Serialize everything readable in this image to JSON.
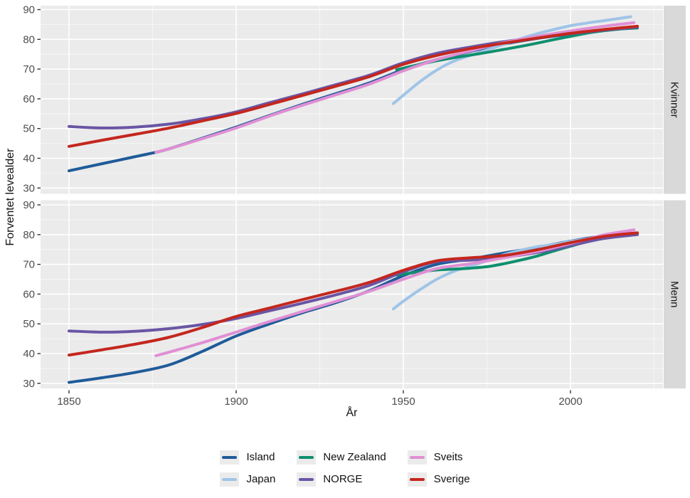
{
  "figure": {
    "y_axis_label": "Forventet levealder",
    "x_axis_label": "År"
  },
  "chart_data": {
    "type": "line",
    "title": "",
    "xlabel": "År",
    "ylabel": "Forventet levealder",
    "x_ticks": [
      1850,
      1900,
      1950,
      2000
    ],
    "x_minor": [
      1875,
      1925,
      1975,
      2025
    ],
    "y_ticks": [
      30,
      40,
      50,
      60,
      70,
      80,
      90
    ],
    "y_minor": [
      35,
      45,
      55,
      65,
      75,
      85
    ],
    "xlim": [
      1841,
      2028
    ],
    "ylim": [
      29,
      91
    ],
    "grid": true,
    "legend_position": "bottom",
    "facet_variable_values": [
      "Kvinner",
      "Menn"
    ],
    "legend": [
      {
        "label": "Island",
        "color": "#1f5b99"
      },
      {
        "label": "Japan",
        "color": "#9fc4e7"
      },
      {
        "label": "New Zealand",
        "color": "#0e8f6e"
      },
      {
        "label": "NORGE",
        "color": "#6a55a4"
      },
      {
        "label": "Sveits",
        "color": "#e08fd4"
      },
      {
        "label": "Sverige",
        "color": "#c4271e"
      }
    ],
    "facets": [
      {
        "label": "Kvinner",
        "series": [
          {
            "name": "Island",
            "color": "#1f5b99",
            "points": [
              [
                1850,
                35.8
              ],
              [
                1860,
                38.2
              ],
              [
                1870,
                40.6
              ],
              [
                1876,
                42.0
              ],
              [
                1880,
                43.2
              ],
              [
                1890,
                46.8
              ],
              [
                1900,
                50.5
              ],
              [
                1910,
                54.4
              ],
              [
                1920,
                58.2
              ],
              [
                1930,
                61.8
              ],
              [
                1940,
                65.4
              ],
              [
                1950,
                69.8
              ],
              [
                1960,
                73.2
              ],
              [
                1970,
                75.9
              ],
              [
                1980,
                78.4
              ],
              [
                1990,
                80.3
              ],
              [
                2000,
                81.8
              ],
              [
                2010,
                83.1
              ],
              [
                2020,
                84.0
              ]
            ]
          },
          {
            "name": "Japan",
            "color": "#9fc4e7",
            "points": [
              [
                1947,
                58.4
              ],
              [
                1950,
                61.2
              ],
              [
                1955,
                65.8
              ],
              [
                1960,
                69.7
              ],
              [
                1965,
                72.6
              ],
              [
                1970,
                74.6
              ],
              [
                1975,
                76.4
              ],
              [
                1980,
                78.3
              ],
              [
                1985,
                80.2
              ],
              [
                1990,
                81.9
              ],
              [
                1995,
                83.3
              ],
              [
                2000,
                84.6
              ],
              [
                2005,
                85.5
              ],
              [
                2010,
                86.3
              ],
              [
                2015,
                87.1
              ],
              [
                2018,
                87.6
              ]
            ]
          },
          {
            "name": "New Zealand",
            "color": "#0e8f6e",
            "points": [
              [
                1948,
                69.8
              ],
              [
                1955,
                71.6
              ],
              [
                1960,
                72.8
              ],
              [
                1965,
                73.8
              ],
              [
                1970,
                74.7
              ],
              [
                1975,
                75.6
              ],
              [
                1980,
                76.6
              ],
              [
                1985,
                77.6
              ],
              [
                1990,
                78.7
              ],
              [
                1995,
                79.9
              ],
              [
                2000,
                81.0
              ],
              [
                2005,
                82.1
              ],
              [
                2010,
                82.9
              ],
              [
                2015,
                83.5
              ],
              [
                2020,
                83.8
              ]
            ]
          },
          {
            "name": "NORGE",
            "color": "#6a55a4",
            "points": [
              [
                1850,
                50.7
              ],
              [
                1860,
                50.2
              ],
              [
                1870,
                50.5
              ],
              [
                1880,
                51.5
              ],
              [
                1890,
                53.3
              ],
              [
                1900,
                55.6
              ],
              [
                1910,
                58.7
              ],
              [
                1920,
                61.7
              ],
              [
                1930,
                64.8
              ],
              [
                1940,
                68.0
              ],
              [
                1950,
                72.1
              ],
              [
                1960,
                75.3
              ],
              [
                1970,
                77.4
              ],
              [
                1980,
                79.2
              ],
              [
                1990,
                80.6
              ],
              [
                2000,
                81.9
              ],
              [
                2010,
                83.1
              ],
              [
                2020,
                84.1
              ]
            ]
          },
          {
            "name": "Sveits",
            "color": "#e08fd4",
            "points": [
              [
                1876,
                42.0
              ],
              [
                1880,
                43.2
              ],
              [
                1890,
                46.6
              ],
              [
                1900,
                50.2
              ],
              [
                1910,
                54.2
              ],
              [
                1920,
                57.9
              ],
              [
                1930,
                61.4
              ],
              [
                1940,
                65.0
              ],
              [
                1950,
                69.4
              ],
              [
                1960,
                73.2
              ],
              [
                1970,
                76.1
              ],
              [
                1980,
                78.9
              ],
              [
                1990,
                81.0
              ],
              [
                2000,
                82.8
              ],
              [
                2010,
                84.4
              ],
              [
                2019,
                85.6
              ]
            ]
          },
          {
            "name": "Sverige",
            "color": "#c4271e",
            "points": [
              [
                1850,
                44.0
              ],
              [
                1860,
                46.1
              ],
              [
                1870,
                48.1
              ],
              [
                1880,
                50.2
              ],
              [
                1890,
                52.6
              ],
              [
                1900,
                55.1
              ],
              [
                1910,
                58.1
              ],
              [
                1920,
                61.2
              ],
              [
                1930,
                64.3
              ],
              [
                1940,
                67.5
              ],
              [
                1950,
                71.6
              ],
              [
                1960,
                74.6
              ],
              [
                1970,
                76.9
              ],
              [
                1980,
                78.7
              ],
              [
                1990,
                80.4
              ],
              [
                2000,
                82.0
              ],
              [
                2010,
                83.3
              ],
              [
                2020,
                84.4
              ]
            ]
          }
        ]
      },
      {
        "label": "Menn",
        "series": [
          {
            "name": "Island",
            "color": "#1f5b99",
            "points": [
              [
                1850,
                30.3
              ],
              [
                1860,
                31.9
              ],
              [
                1870,
                33.7
              ],
              [
                1880,
                36.2
              ],
              [
                1890,
                40.8
              ],
              [
                1900,
                45.9
              ],
              [
                1910,
                50.0
              ],
              [
                1920,
                53.8
              ],
              [
                1930,
                57.2
              ],
              [
                1940,
                61.2
              ],
              [
                1950,
                66.2
              ],
              [
                1960,
                70.0
              ],
              [
                1970,
                71.8
              ],
              [
                1980,
                73.8
              ],
              [
                1990,
                75.7
              ],
              [
                2000,
                77.8
              ],
              [
                2010,
                79.6
              ],
              [
                2020,
                80.3
              ]
            ]
          },
          {
            "name": "Japan",
            "color": "#9fc4e7",
            "points": [
              [
                1947,
                55.0
              ],
              [
                1950,
                57.6
              ],
              [
                1955,
                61.5
              ],
              [
                1960,
                65.0
              ],
              [
                1965,
                67.6
              ],
              [
                1970,
                69.4
              ],
              [
                1975,
                71.2
              ],
              [
                1980,
                73.2
              ],
              [
                1985,
                74.7
              ],
              [
                1990,
                75.9
              ],
              [
                1995,
                76.7
              ],
              [
                2000,
                77.7
              ],
              [
                2005,
                78.6
              ],
              [
                2010,
                79.6
              ],
              [
                2015,
                80.8
              ],
              [
                2018,
                81.3
              ]
            ]
          },
          {
            "name": "New Zealand",
            "color": "#0e8f6e",
            "points": [
              [
                1948,
                66.4
              ],
              [
                1955,
                67.5
              ],
              [
                1960,
                68.1
              ],
              [
                1965,
                68.4
              ],
              [
                1970,
                68.7
              ],
              [
                1975,
                69.2
              ],
              [
                1980,
                70.2
              ],
              [
                1985,
                71.4
              ],
              [
                1990,
                72.8
              ],
              [
                1995,
                74.5
              ],
              [
                2000,
                76.1
              ],
              [
                2005,
                77.7
              ],
              [
                2010,
                78.9
              ],
              [
                2015,
                79.8
              ],
              [
                2020,
                80.3
              ]
            ]
          },
          {
            "name": "NORGE",
            "color": "#6a55a4",
            "points": [
              [
                1850,
                47.6
              ],
              [
                1860,
                47.2
              ],
              [
                1870,
                47.5
              ],
              [
                1880,
                48.4
              ],
              [
                1890,
                49.8
              ],
              [
                1900,
                51.8
              ],
              [
                1910,
                54.4
              ],
              [
                1920,
                57.0
              ],
              [
                1930,
                59.8
              ],
              [
                1940,
                63.0
              ],
              [
                1950,
                67.5
              ],
              [
                1960,
                70.9
              ],
              [
                1970,
                71.4
              ],
              [
                1980,
                72.4
              ],
              [
                1990,
                74.0
              ],
              [
                2000,
                76.3
              ],
              [
                2010,
                78.7
              ],
              [
                2020,
                80.0
              ]
            ]
          },
          {
            "name": "Sveits",
            "color": "#e08fd4",
            "points": [
              [
                1876,
                39.3
              ],
              [
                1880,
                40.5
              ],
              [
                1890,
                43.7
              ],
              [
                1900,
                47.2
              ],
              [
                1910,
                50.8
              ],
              [
                1920,
                54.2
              ],
              [
                1930,
                57.6
              ],
              [
                1940,
                61.0
              ],
              [
                1950,
                65.0
              ],
              [
                1960,
                68.6
              ],
              [
                1970,
                70.2
              ],
              [
                1980,
                72.2
              ],
              [
                1990,
                74.3
              ],
              [
                2000,
                77.0
              ],
              [
                2010,
                79.9
              ],
              [
                2019,
                81.6
              ]
            ]
          },
          {
            "name": "Sverige",
            "color": "#c4271e",
            "points": [
              [
                1850,
                39.5
              ],
              [
                1860,
                41.3
              ],
              [
                1870,
                43.2
              ],
              [
                1880,
                45.5
              ],
              [
                1890,
                48.8
              ],
              [
                1900,
                52.5
              ],
              [
                1910,
                55.3
              ],
              [
                1920,
                58.2
              ],
              [
                1930,
                61.0
              ],
              [
                1940,
                64.0
              ],
              [
                1950,
                68.0
              ],
              [
                1960,
                71.2
              ],
              [
                1970,
                72.2
              ],
              [
                1980,
                73.0
              ],
              [
                1990,
                74.9
              ],
              [
                2000,
                77.3
              ],
              [
                2010,
                79.4
              ],
              [
                2020,
                80.6
              ]
            ]
          }
        ]
      }
    ],
    "style_colors": {
      "panel_background": "#ebebeb",
      "grid_major": "#ffffff",
      "strip_background": "#d9d9d9",
      "tick_label": "#4d4d4d",
      "axis_title": "#111111"
    }
  }
}
